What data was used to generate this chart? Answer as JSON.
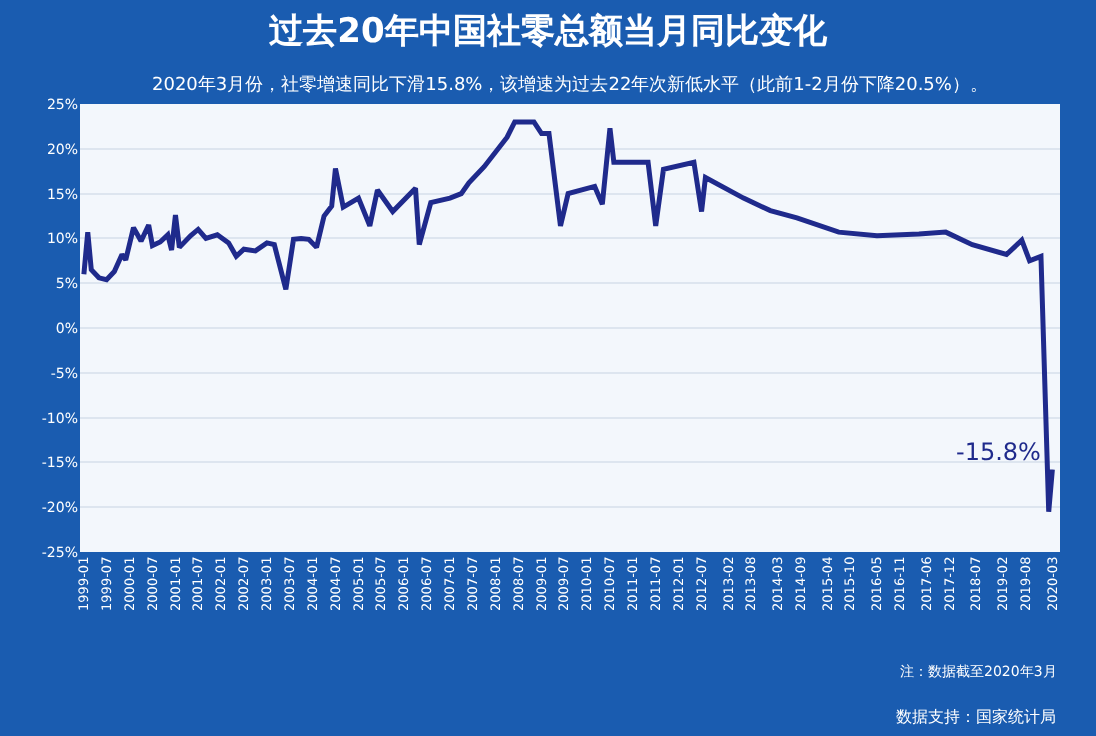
{
  "chart_data": {
    "type": "line",
    "title": "过去20年中国社零总额当月同比变化",
    "x": [
      "1999-01",
      "1999-02",
      "1999-03",
      "1999-05",
      "1999-07",
      "1999-09",
      "1999-11",
      "1999-12",
      "2000-02",
      "2000-04",
      "2000-06",
      "2000-07",
      "2000-09",
      "2000-11",
      "2000-12",
      "2001-01",
      "2001-02",
      "2001-05",
      "2001-07",
      "2001-09",
      "2001-12",
      "2002-03",
      "2002-05",
      "2002-07",
      "2002-10",
      "2003-01",
      "2003-03",
      "2003-06",
      "2003-08",
      "2003-10",
      "2003-12",
      "2004-02",
      "2004-04",
      "2004-06",
      "2004-07",
      "2004-09",
      "2005-01",
      "2005-04",
      "2005-06",
      "2005-10",
      "2006-04",
      "2006-05",
      "2006-08",
      "2007-01",
      "2007-04",
      "2007-06",
      "2007-10",
      "2008-04",
      "2008-06",
      "2008-11",
      "2009-01",
      "2009-03",
      "2009-06",
      "2009-08",
      "2010-03",
      "2010-05",
      "2010-07",
      "2010-08",
      "2011-05",
      "2011-07",
      "2011-09",
      "2012-05",
      "2012-07",
      "2012-08",
      "2013-06",
      "2014-01",
      "2014-08",
      "2015-07",
      "2016-05",
      "2017-04",
      "2017-11",
      "2018-06",
      "2019-03",
      "2019-07",
      "2019-09",
      "2019-12",
      "2020-02",
      "2020-03"
    ],
    "series": [
      {
        "color": "#1f2a8c",
        "values": [
          6.0,
          10.7,
          6.5,
          5.6,
          5.4,
          6.3,
          8.2,
          7.6,
          11.2,
          9.7,
          11.5,
          9.2,
          9.6,
          10.4,
          8.7,
          12.6,
          9.0,
          10.3,
          11.0,
          10.0,
          10.4,
          9.5,
          8.0,
          8.8,
          8.6,
          9.5,
          9.3,
          4.3,
          9.9,
          10.0,
          9.9,
          9.0,
          12.5,
          13.6,
          17.8,
          13.5,
          14.5,
          11.4,
          15.4,
          13.0,
          15.6,
          9.3,
          14.0,
          14.5,
          15.0,
          16.2,
          18.0,
          21.3,
          23.0,
          23.0,
          21.7,
          21.7,
          11.4,
          15.0,
          15.8,
          13.8,
          22.3,
          18.5,
          18.5,
          11.4,
          17.7,
          18.5,
          13.0,
          16.8,
          14.5,
          13.1,
          12.3,
          10.7,
          10.3,
          10.5,
          10.7,
          9.3,
          8.2,
          9.8,
          7.5,
          8.0,
          -20.5,
          -15.8
        ]
      }
    ],
    "xlim": [
      "1998-12",
      "2020-05"
    ],
    "xticks": [
      "1999-01",
      "1999-07",
      "2000-01",
      "2000-07",
      "2001-01",
      "2001-07",
      "2002-01",
      "2002-07",
      "2003-01",
      "2003-07",
      "2004-01",
      "2004-07",
      "2005-01",
      "2005-07",
      "2006-01",
      "2006-07",
      "2007-01",
      "2007-07",
      "2008-01",
      "2008-07",
      "2009-01",
      "2009-07",
      "2010-01",
      "2010-07",
      "2011-01",
      "2011-07",
      "2012-01",
      "2012-07",
      "2013-02",
      "2013-08",
      "2014-03",
      "2014-09",
      "2015-04",
      "2015-10",
      "2016-05",
      "2016-11",
      "2017-06",
      "2017-12",
      "2018-07",
      "2019-02",
      "2019-08",
      "2020-03"
    ],
    "ylim": [
      -25,
      25
    ],
    "yticks": [
      {
        "value": -25,
        "label": "-25%"
      },
      {
        "value": -20,
        "label": "-20%"
      },
      {
        "value": -15,
        "label": "-15%"
      },
      {
        "value": -10,
        "label": "-10%"
      },
      {
        "value": -5,
        "label": "-5%"
      },
      {
        "value": 0,
        "label": "0%"
      },
      {
        "value": 5,
        "label": "5%"
      },
      {
        "value": 10,
        "label": "10%"
      },
      {
        "value": 15,
        "label": "15%"
      },
      {
        "value": 20,
        "label": "20%"
      },
      {
        "value": 25,
        "label": "25%"
      }
    ],
    "grid": "y",
    "marker": "none",
    "line_style": "solid",
    "annotations": [
      "2020年3月份，社零增速同比下滑15.8%，该增速为过去22年次新低水平（此前1-2月份下降20.5%）。",
      {
        "text": "-15.8%",
        "x": "2020-03",
        "y": -15.8
      },
      "注：数据截至2020年3月",
      "数据支持：国家统计局"
    ]
  }
}
